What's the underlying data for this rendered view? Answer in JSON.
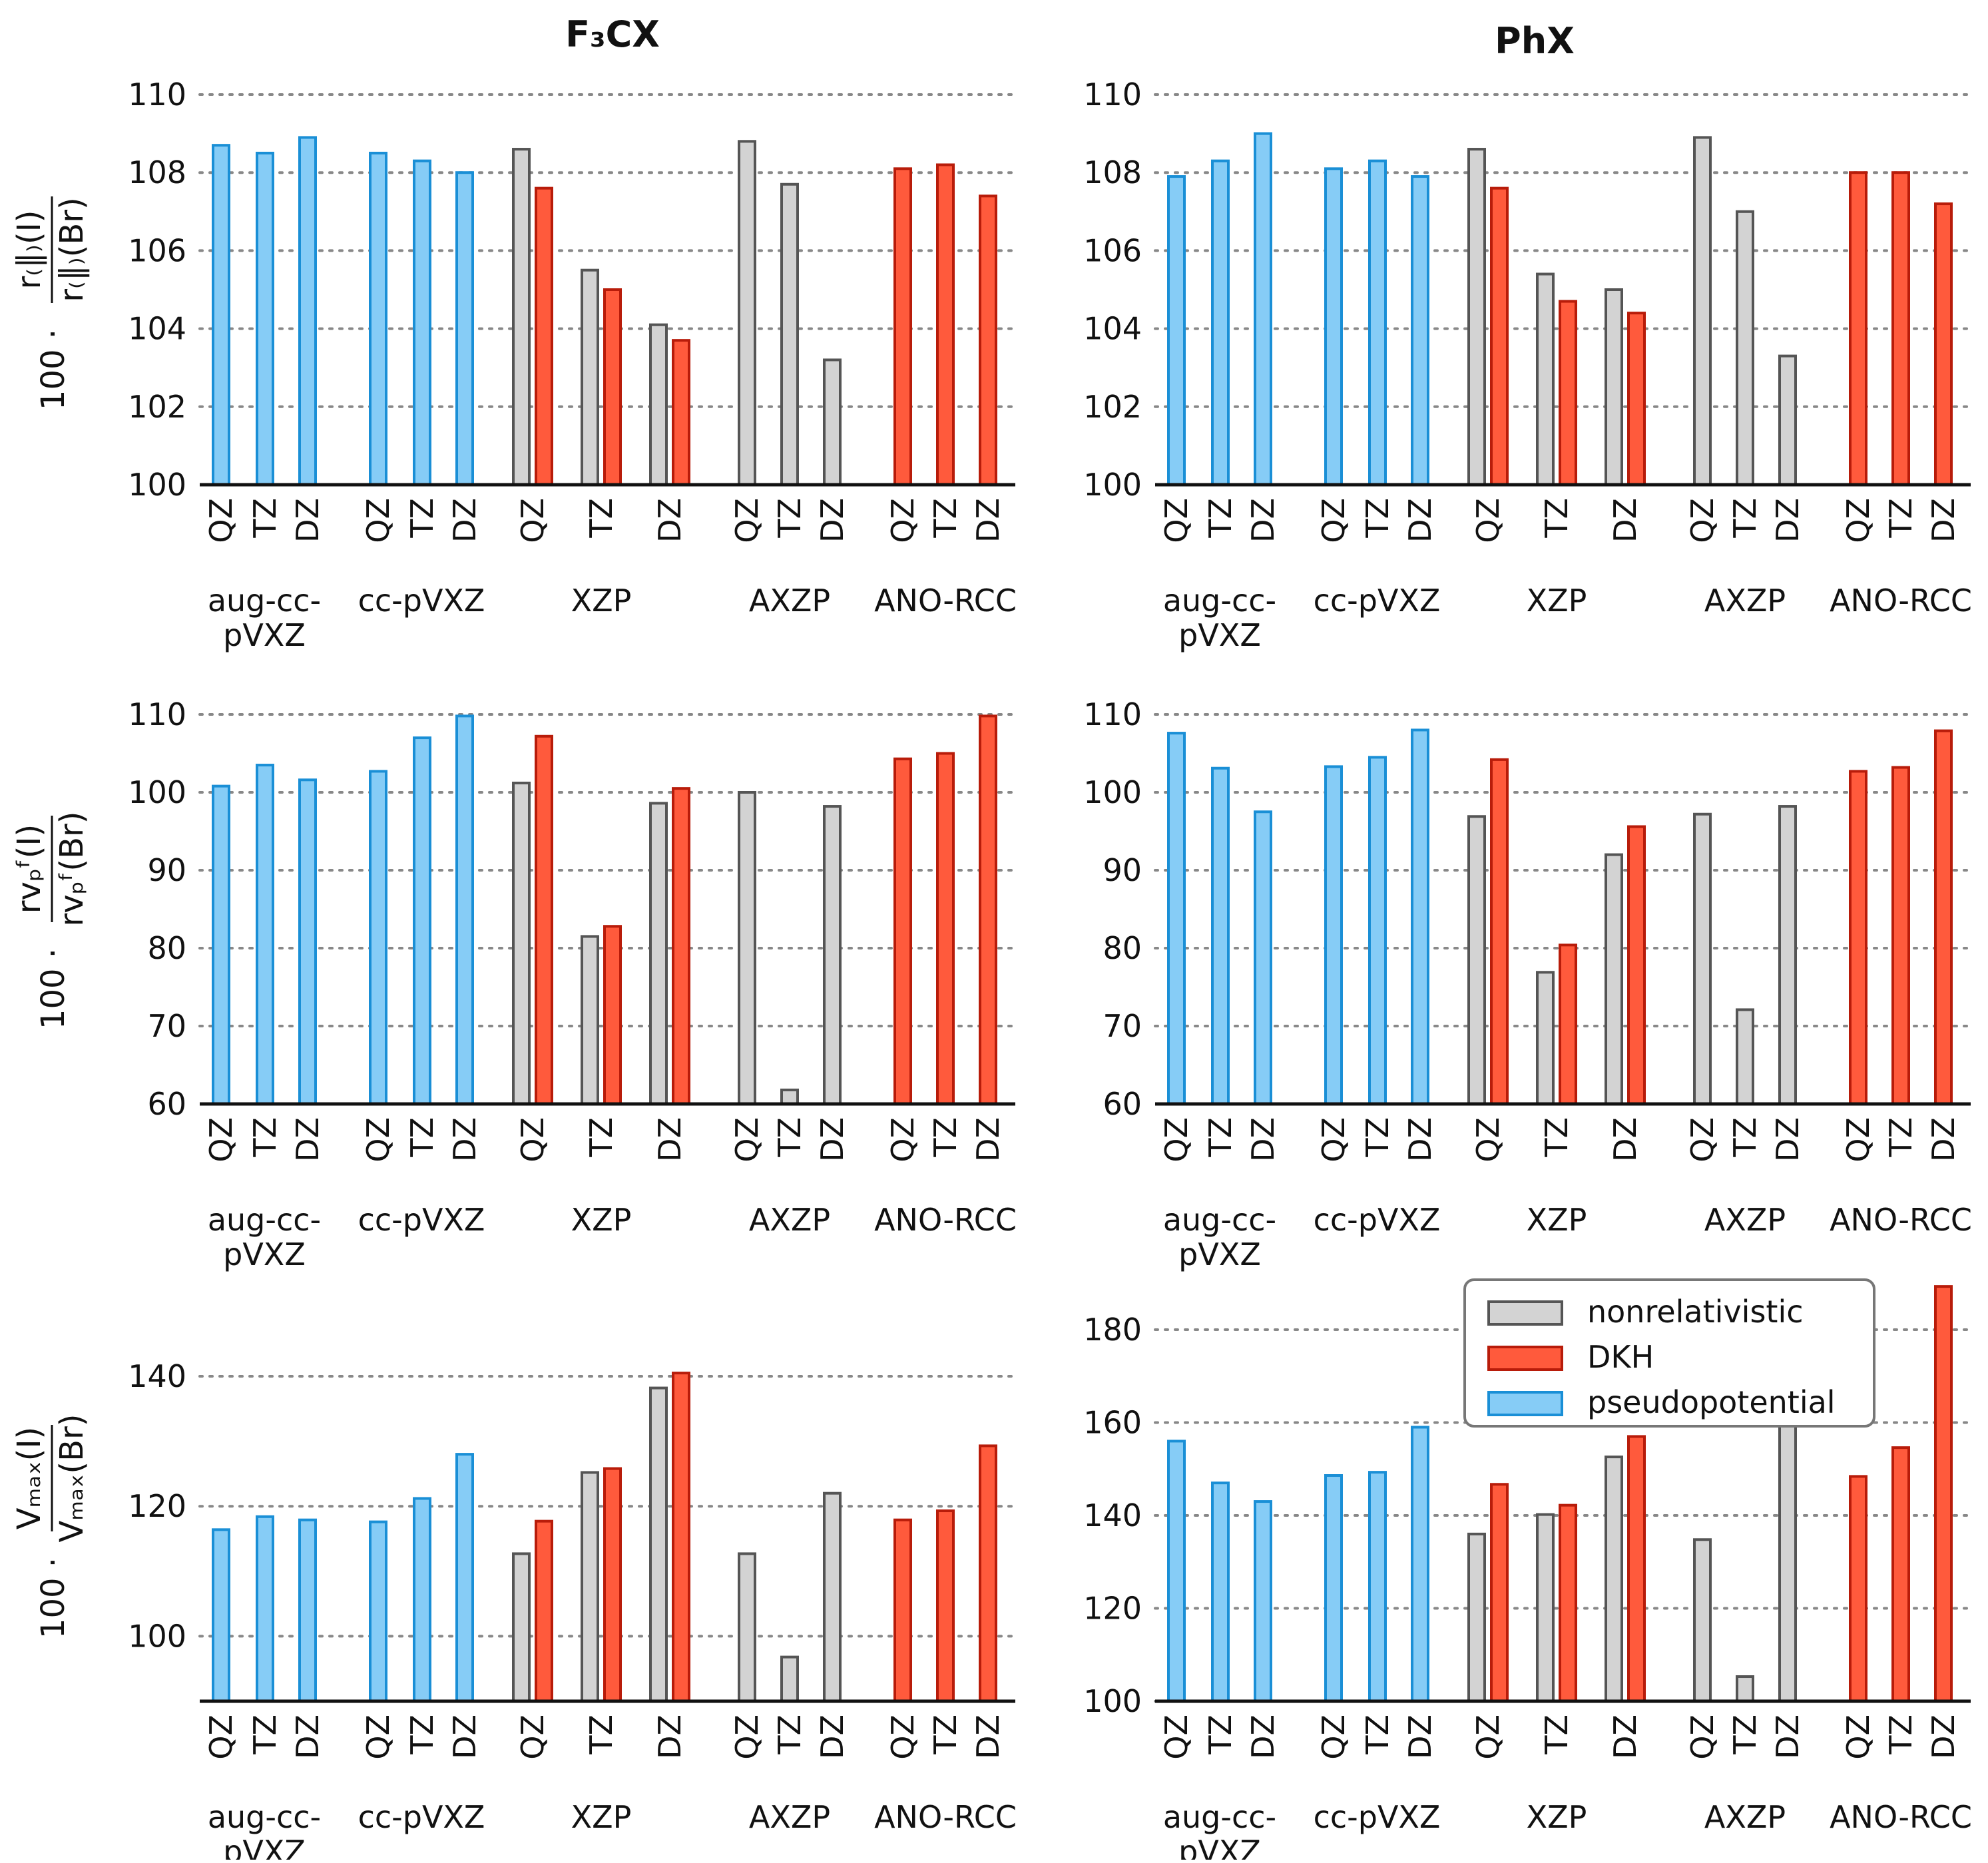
{
  "column_titles": {
    "left": "F₃CX",
    "right": "PhX"
  },
  "row_ylabels": [
    {
      "prefix": "100 ·",
      "num": "r₍∥₎(I)",
      "den": "r₍∥₎(Br)"
    },
    {
      "prefix": "100 ·",
      "num": "rvₚᶠ(I)",
      "den": "rvₚᶠ(Br)"
    },
    {
      "prefix": "100 ·",
      "num": "Vₘₐₓ(I)",
      "den": "Vₘₐₓ(Br)"
    }
  ],
  "legend": [
    {
      "label": "nonrelativistic",
      "fill": "#d3d3d3",
      "stroke": "#555555"
    },
    {
      "label": "DKH",
      "fill": "#ff5a3c",
      "stroke": "#b81c0a"
    },
    {
      "label": "pseudopotential",
      "fill": "#86ccf6",
      "stroke": "#1a8fd6"
    }
  ],
  "colors": {
    "grid": "#888888",
    "axis": "#111111"
  },
  "chart_data": [
    {
      "type": "bar",
      "title": "F₃CX",
      "panel": "r_parallel",
      "ylim": [
        100,
        110
      ],
      "yticks": [
        100,
        102,
        104,
        106,
        108,
        110
      ],
      "groups": [
        {
          "label": [
            "aug-cc-",
            "pVXZ"
          ],
          "items": [
            {
              "cat": "QZ",
              "pp": 108.7
            },
            {
              "cat": "TZ",
              "pp": 108.5
            },
            {
              "cat": "DZ",
              "pp": 108.9
            }
          ]
        },
        {
          "label": [
            "cc-pVXZ"
          ],
          "items": [
            {
              "cat": "QZ",
              "pp": 108.5
            },
            {
              "cat": "TZ",
              "pp": 108.3
            },
            {
              "cat": "DZ",
              "pp": 108.0
            }
          ]
        },
        {
          "label": [
            "XZP"
          ],
          "items": [
            {
              "cat": "QZ",
              "nonrel": 108.6,
              "dkh": 107.6
            },
            {
              "cat": "TZ",
              "nonrel": 105.5,
              "dkh": 105.0
            },
            {
              "cat": "DZ",
              "nonrel": 104.1,
              "dkh": 103.7
            }
          ]
        },
        {
          "label": [
            "AXZP"
          ],
          "items": [
            {
              "cat": "QZ",
              "nonrel": 108.8
            },
            {
              "cat": "TZ",
              "nonrel": 107.7
            },
            {
              "cat": "DZ",
              "nonrel": 103.2
            }
          ]
        },
        {
          "label": [
            "ANO-RCC"
          ],
          "items": [
            {
              "cat": "QZ",
              "dkh": 108.1
            },
            {
              "cat": "TZ",
              "dkh": 108.2
            },
            {
              "cat": "DZ",
              "dkh": 107.4
            }
          ]
        }
      ]
    },
    {
      "type": "bar",
      "title": "PhX",
      "panel": "r_parallel",
      "ylim": [
        100,
        110
      ],
      "yticks": [
        100,
        102,
        104,
        106,
        108,
        110
      ],
      "groups": [
        {
          "label": [
            "aug-cc-",
            "pVXZ"
          ],
          "items": [
            {
              "cat": "QZ",
              "pp": 107.9
            },
            {
              "cat": "TZ",
              "pp": 108.3
            },
            {
              "cat": "DZ",
              "pp": 109.0
            }
          ]
        },
        {
          "label": [
            "cc-pVXZ"
          ],
          "items": [
            {
              "cat": "QZ",
              "pp": 108.1
            },
            {
              "cat": "TZ",
              "pp": 108.3
            },
            {
              "cat": "DZ",
              "pp": 107.9
            }
          ]
        },
        {
          "label": [
            "XZP"
          ],
          "items": [
            {
              "cat": "QZ",
              "nonrel": 108.6,
              "dkh": 107.6
            },
            {
              "cat": "TZ",
              "nonrel": 105.4,
              "dkh": 104.7
            },
            {
              "cat": "DZ",
              "nonrel": 105.0,
              "dkh": 104.4
            }
          ]
        },
        {
          "label": [
            "AXZP"
          ],
          "items": [
            {
              "cat": "QZ",
              "nonrel": 108.9
            },
            {
              "cat": "TZ",
              "nonrel": 107.0
            },
            {
              "cat": "DZ",
              "nonrel": 103.3
            }
          ]
        },
        {
          "label": [
            "ANO-RCC"
          ],
          "items": [
            {
              "cat": "QZ",
              "dkh": 108.0
            },
            {
              "cat": "TZ",
              "dkh": 108.0
            },
            {
              "cat": "DZ",
              "dkh": 107.2
            }
          ]
        }
      ]
    },
    {
      "type": "bar",
      "title": "F₃CX",
      "panel": "rv_pf",
      "ylim": [
        60,
        110
      ],
      "yticks": [
        60,
        70,
        80,
        90,
        100,
        110
      ],
      "groups": [
        {
          "label": [
            "aug-cc-",
            "pVXZ"
          ],
          "items": [
            {
              "cat": "QZ",
              "pp": 100.8
            },
            {
              "cat": "TZ",
              "pp": 103.5
            },
            {
              "cat": "DZ",
              "pp": 101.6
            }
          ]
        },
        {
          "label": [
            "cc-pVXZ"
          ],
          "items": [
            {
              "cat": "QZ",
              "pp": 102.7
            },
            {
              "cat": "TZ",
              "pp": 107.0
            },
            {
              "cat": "DZ",
              "pp": 109.8
            }
          ]
        },
        {
          "label": [
            "XZP"
          ],
          "items": [
            {
              "cat": "QZ",
              "nonrel": 101.2,
              "dkh": 107.2
            },
            {
              "cat": "TZ",
              "nonrel": 81.5,
              "dkh": 82.8
            },
            {
              "cat": "DZ",
              "nonrel": 98.6,
              "dkh": 100.5
            }
          ]
        },
        {
          "label": [
            "AXZP"
          ],
          "items": [
            {
              "cat": "QZ",
              "nonrel": 100.0
            },
            {
              "cat": "TZ",
              "nonrel": 61.8
            },
            {
              "cat": "DZ",
              "nonrel": 98.2
            }
          ]
        },
        {
          "label": [
            "ANO-RCC"
          ],
          "items": [
            {
              "cat": "QZ",
              "dkh": 104.3
            },
            {
              "cat": "TZ",
              "dkh": 105.0
            },
            {
              "cat": "DZ",
              "dkh": 109.8
            }
          ]
        }
      ]
    },
    {
      "type": "bar",
      "title": "PhX",
      "panel": "rv_pf",
      "ylim": [
        60,
        110
      ],
      "yticks": [
        60,
        70,
        80,
        90,
        100,
        110
      ],
      "groups": [
        {
          "label": [
            "aug-cc-",
            "pVXZ"
          ],
          "items": [
            {
              "cat": "QZ",
              "pp": 107.6
            },
            {
              "cat": "TZ",
              "pp": 103.1
            },
            {
              "cat": "DZ",
              "pp": 97.5
            }
          ]
        },
        {
          "label": [
            "cc-pVXZ"
          ],
          "items": [
            {
              "cat": "QZ",
              "pp": 103.3
            },
            {
              "cat": "TZ",
              "pp": 104.5
            },
            {
              "cat": "DZ",
              "pp": 108.0
            }
          ]
        },
        {
          "label": [
            "XZP"
          ],
          "items": [
            {
              "cat": "QZ",
              "nonrel": 96.9,
              "dkh": 104.2
            },
            {
              "cat": "TZ",
              "nonrel": 76.9,
              "dkh": 80.4
            },
            {
              "cat": "DZ",
              "nonrel": 92.0,
              "dkh": 95.6
            }
          ]
        },
        {
          "label": [
            "AXZP"
          ],
          "items": [
            {
              "cat": "QZ",
              "nonrel": 97.2
            },
            {
              "cat": "TZ",
              "nonrel": 72.1
            },
            {
              "cat": "DZ",
              "nonrel": 98.2
            }
          ]
        },
        {
          "label": [
            "ANO-RCC"
          ],
          "items": [
            {
              "cat": "QZ",
              "dkh": 102.7
            },
            {
              "cat": "TZ",
              "dkh": 103.2
            },
            {
              "cat": "DZ",
              "dkh": 107.9
            }
          ]
        }
      ]
    },
    {
      "type": "bar",
      "title": "F₃CX",
      "panel": "V_max",
      "ylim": [
        90,
        148
      ],
      "yticks": [
        100,
        120,
        140
      ],
      "groups": [
        {
          "label": [
            "aug-cc-",
            "pVXZ"
          ],
          "items": [
            {
              "cat": "QZ",
              "pp": 116.4
            },
            {
              "cat": "TZ",
              "pp": 118.4
            },
            {
              "cat": "DZ",
              "pp": 117.9
            }
          ]
        },
        {
          "label": [
            "cc-pVXZ"
          ],
          "items": [
            {
              "cat": "QZ",
              "pp": 117.6
            },
            {
              "cat": "TZ",
              "pp": 121.2
            },
            {
              "cat": "DZ",
              "pp": 128.0
            }
          ]
        },
        {
          "label": [
            "XZP"
          ],
          "items": [
            {
              "cat": "QZ",
              "nonrel": 112.7,
              "dkh": 117.7
            },
            {
              "cat": "TZ",
              "nonrel": 125.2,
              "dkh": 125.8
            },
            {
              "cat": "DZ",
              "nonrel": 138.2,
              "dkh": 140.5
            }
          ]
        },
        {
          "label": [
            "AXZP"
          ],
          "items": [
            {
              "cat": "QZ",
              "nonrel": 112.7
            },
            {
              "cat": "TZ",
              "nonrel": 96.8
            },
            {
              "cat": "DZ",
              "nonrel": 122.0
            }
          ]
        },
        {
          "label": [
            "ANO-RCC"
          ],
          "items": [
            {
              "cat": "QZ",
              "dkh": 117.9
            },
            {
              "cat": "TZ",
              "dkh": 119.3
            },
            {
              "cat": "DZ",
              "dkh": 129.3
            }
          ]
        }
      ]
    },
    {
      "type": "bar",
      "title": "PhX",
      "panel": "V_max",
      "ylim": [
        100,
        192
      ],
      "yticks": [
        100,
        120,
        140,
        160,
        180
      ],
      "groups": [
        {
          "label": [
            "aug-cc-",
            "pVXZ"
          ],
          "items": [
            {
              "cat": "QZ",
              "pp": 156.0
            },
            {
              "cat": "TZ",
              "pp": 147.0
            },
            {
              "cat": "DZ",
              "pp": 143.0
            }
          ]
        },
        {
          "label": [
            "cc-pVXZ"
          ],
          "items": [
            {
              "cat": "QZ",
              "pp": 148.6
            },
            {
              "cat": "TZ",
              "pp": 149.3
            },
            {
              "cat": "DZ",
              "pp": 159.0
            }
          ]
        },
        {
          "label": [
            "XZP"
          ],
          "items": [
            {
              "cat": "QZ",
              "nonrel": 136.0,
              "dkh": 146.7
            },
            {
              "cat": "TZ",
              "nonrel": 140.2,
              "dkh": 142.2
            },
            {
              "cat": "DZ",
              "nonrel": 152.6,
              "dkh": 157.0
            }
          ]
        },
        {
          "label": [
            "AXZP"
          ],
          "items": [
            {
              "cat": "QZ",
              "nonrel": 134.8
            },
            {
              "cat": "TZ",
              "nonrel": 105.3
            },
            {
              "cat": "DZ",
              "nonrel": 160.2
            }
          ]
        },
        {
          "label": [
            "ANO-RCC"
          ],
          "items": [
            {
              "cat": "QZ",
              "dkh": 148.4
            },
            {
              "cat": "TZ",
              "dkh": 154.6
            },
            {
              "cat": "DZ",
              "dkh": 189.3
            }
          ]
        }
      ]
    }
  ]
}
